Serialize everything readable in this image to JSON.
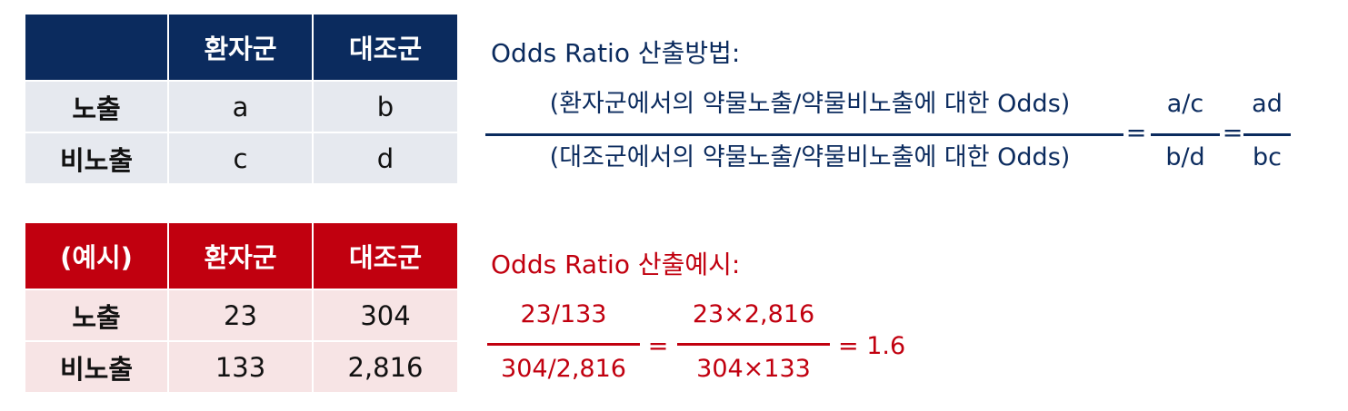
{
  "table_method": {
    "header": [
      "",
      "환자군",
      "대조군"
    ],
    "rows": [
      {
        "label": "노출",
        "cells": [
          "a",
          "b"
        ]
      },
      {
        "label": "비노출",
        "cells": [
          "c",
          "d"
        ]
      }
    ]
  },
  "table_example": {
    "header": [
      "(예시)",
      "환자군",
      "대조군"
    ],
    "rows": [
      {
        "label": "노출",
        "cells": [
          "23",
          "304"
        ]
      },
      {
        "label": "비노출",
        "cells": [
          "133",
          "2,816"
        ]
      }
    ]
  },
  "method": {
    "heading": "Odds Ratio 산출방법:",
    "big_numerator": "(환자군에서의 약물노출/약물비노출에 대한 Odds)",
    "big_denominator": "(대조군에서의 약물노출/약물비노출에 대한 Odds)",
    "eq1": "=",
    "frac2_numerator": "a/c",
    "frac2_denominator": "b/d",
    "eq2": "=",
    "frac3_numerator": "ad",
    "frac3_denominator": "bc"
  },
  "example": {
    "heading": "Odds Ratio 산출예시:",
    "frac1_numerator": "23/133",
    "frac1_denominator": "304/2,816",
    "eq1": "=",
    "frac2_numerator": "23×2,816",
    "frac2_denominator": "304×133",
    "result": "= 1.6"
  },
  "colors": {
    "navy": "#0b2b5e",
    "red": "#c1000f",
    "navy_row_bg": "#e6e9ef",
    "red_row_bg": "#f7e4e5"
  }
}
